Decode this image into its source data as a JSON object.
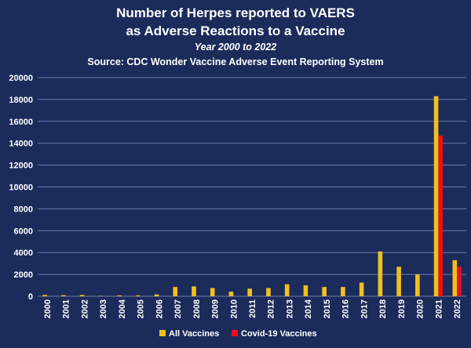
{
  "chart_data": {
    "type": "bar",
    "title": "Number of Herpes reported to VAERS",
    "title_line2": "as Adverse Reactions to a Vaccine",
    "subtitle": "Year 2000 to 2022",
    "source": "Source: CDC Wonder Vaccine Adverse Event Reporting System",
    "categories": [
      "2000",
      "2001",
      "2002",
      "2003",
      "2004",
      "2005",
      "2006",
      "2007",
      "2008",
      "2009",
      "2010",
      "2011",
      "2012",
      "2013",
      "2014",
      "2015",
      "2016",
      "2017",
      "2018",
      "2019",
      "2020",
      "2021",
      "2022"
    ],
    "series": [
      {
        "name": "All Vaccines",
        "color": "#f2c01e",
        "values": [
          120,
          100,
          120,
          40,
          80,
          80,
          170,
          850,
          900,
          750,
          420,
          700,
          750,
          1100,
          1000,
          850,
          850,
          1250,
          4100,
          2700,
          2000,
          18300,
          3300
        ]
      },
      {
        "name": "Covid-19 Vaccines",
        "color": "#e8101b",
        "values": [
          0,
          0,
          0,
          0,
          0,
          0,
          0,
          0,
          0,
          0,
          0,
          0,
          0,
          0,
          0,
          0,
          0,
          0,
          0,
          0,
          0,
          14700,
          2700
        ]
      }
    ],
    "ylim": [
      0,
      20000
    ],
    "yticks": [
      "0",
      "2000",
      "4000",
      "6000",
      "8000",
      "10000",
      "12000",
      "14000",
      "16000",
      "18000",
      "20000"
    ],
    "grid": true,
    "legend_position": "bottom"
  },
  "colors": {
    "background": "#1b2c5b",
    "gridline": "#6b7ca6",
    "text": "#ffffff"
  }
}
